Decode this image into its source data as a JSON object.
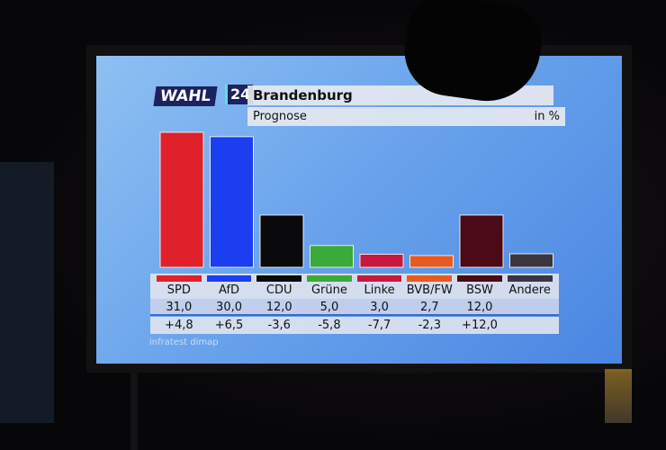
{
  "header": {
    "logo": "WAHL",
    "logo_number": "24",
    "title": "Brandenburg",
    "subtitle": "Prognose",
    "unit": "in %"
  },
  "source": "infratest dimap",
  "colors": {
    "screen": "#6aa4ec",
    "logo_bg": "#1c2160"
  },
  "chart_data": {
    "type": "bar",
    "title": "Brandenburg",
    "subtitle": "Prognose",
    "unit": "in %",
    "categories": [
      "SPD",
      "AfD",
      "CDU",
      "Grüne",
      "Linke",
      "BVB/FW",
      "BSW",
      "Andere"
    ],
    "values": [
      31.0,
      30.0,
      12.0,
      5.0,
      3.0,
      2.7,
      12.0,
      3.1
    ],
    "value_labels": [
      "31,0",
      "30,0",
      "12,0",
      "5,0",
      "3,0",
      "2,7",
      "12,0",
      ""
    ],
    "change_labels": [
      "+4,8",
      "+6,5",
      "-3,6",
      "-5,8",
      "-7,7",
      "-2,3",
      "+12,0",
      ""
    ],
    "colors": [
      "#e0202a",
      "#1a3ef0",
      "#0a0a0c",
      "#3aaa38",
      "#c81840",
      "#e85a20",
      "#4a0a18",
      "#3a3640"
    ],
    "ylim": [
      0,
      31
    ],
    "grid": false,
    "legend": "none"
  }
}
